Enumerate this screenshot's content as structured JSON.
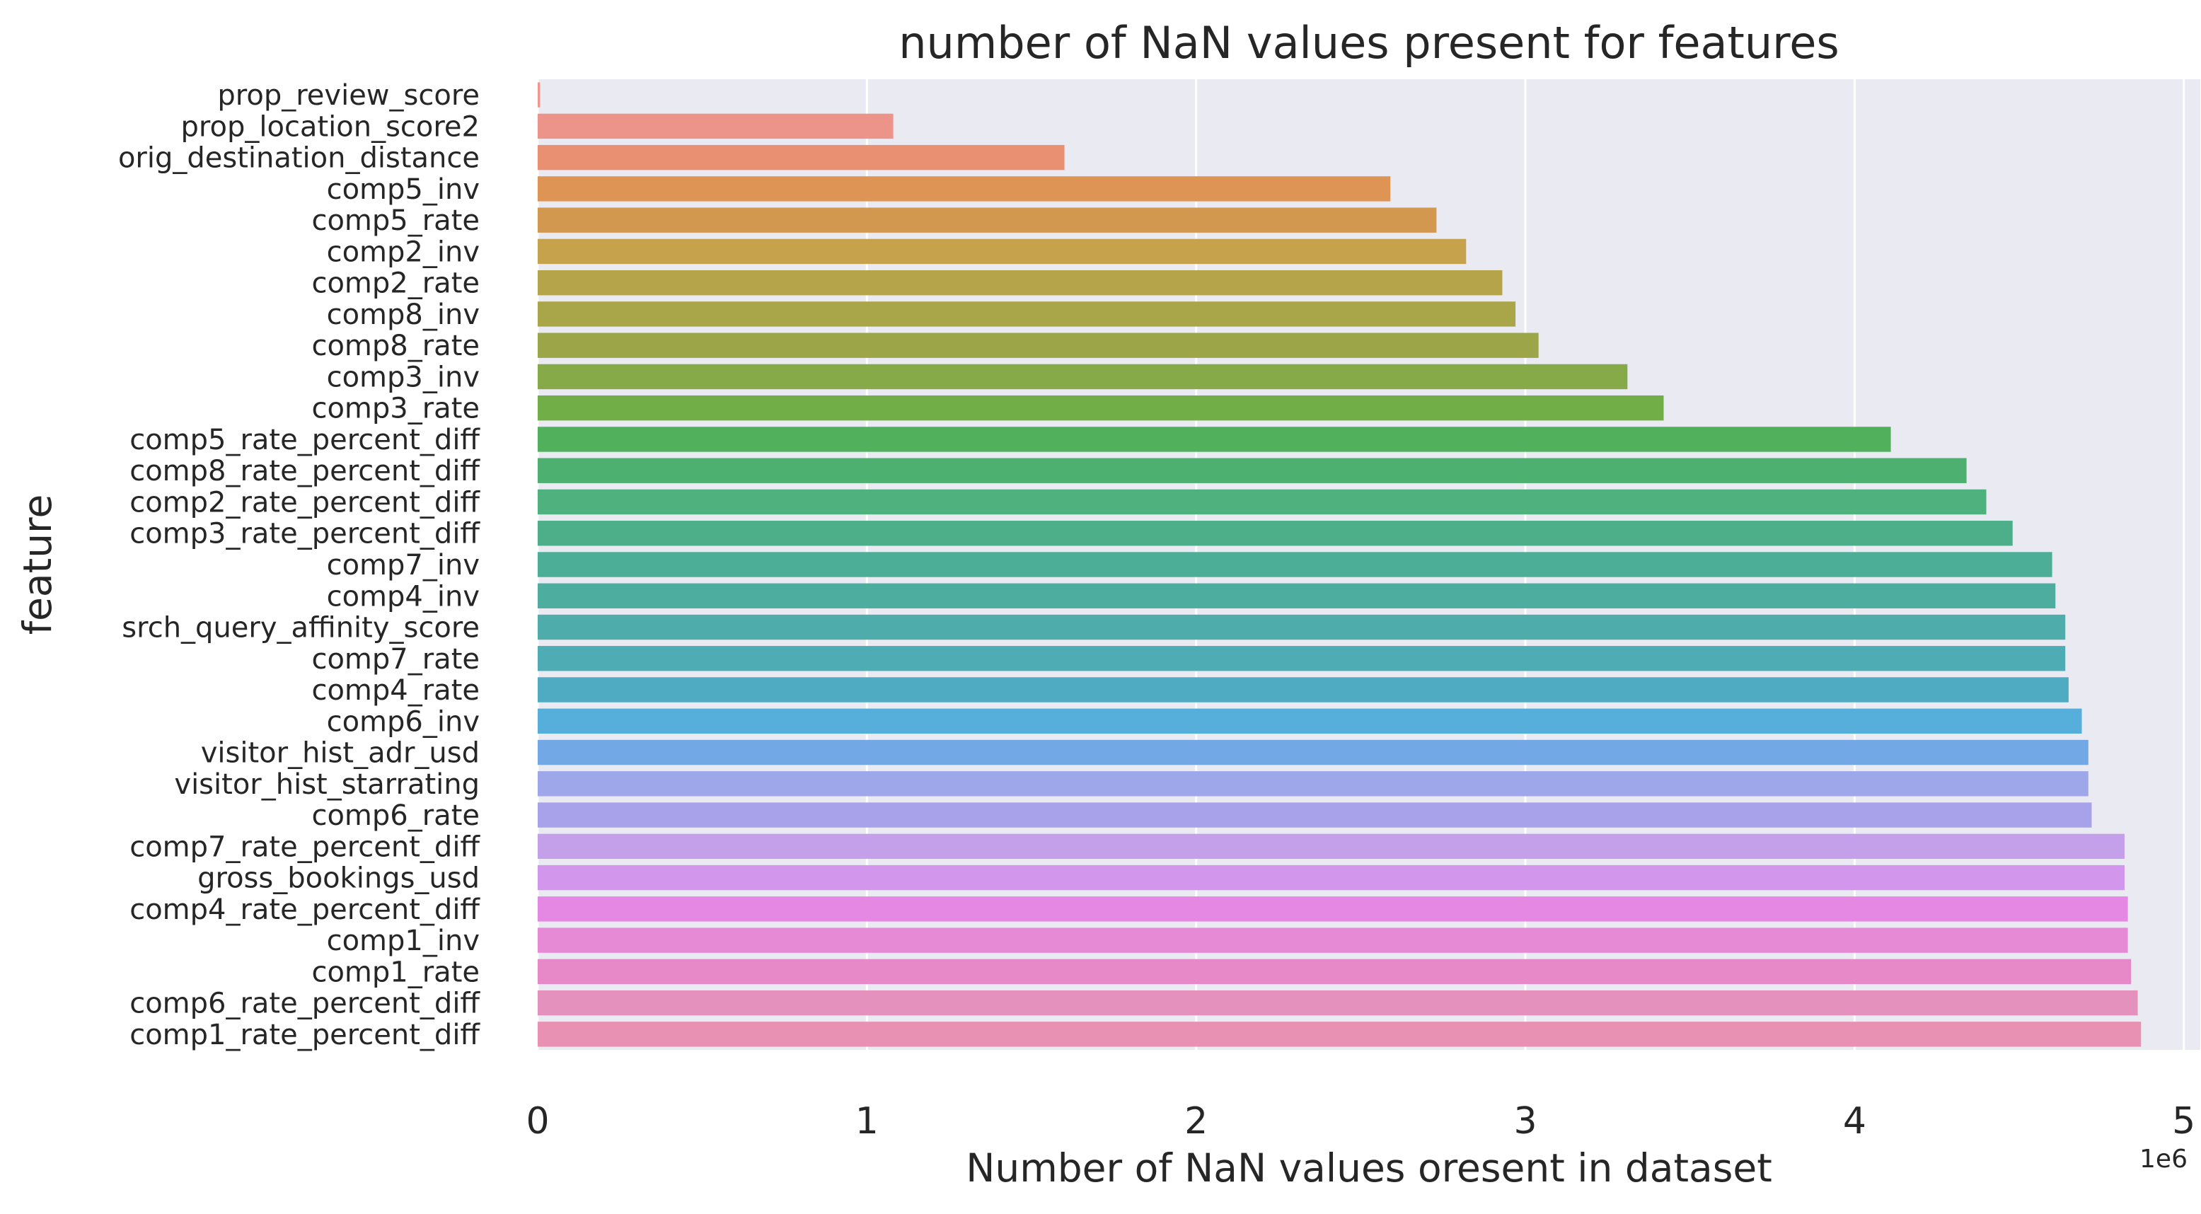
{
  "chart_data": {
    "type": "bar",
    "orientation": "horizontal",
    "title": "number of NaN values present for features",
    "xlabel": "Number of NaN values oresent in dataset",
    "ylabel": "feature",
    "x_offset_label": "1e6",
    "xlim": [
      0,
      5.05
    ],
    "x_ticks": [
      "0",
      "1",
      "2",
      "3",
      "4",
      "5"
    ],
    "grid": true,
    "categories": [
      "prop_review_score",
      "prop_location_score2",
      "orig_destination_distance",
      "comp5_inv",
      "comp5_rate",
      "comp2_inv",
      "comp2_rate",
      "comp8_inv",
      "comp8_rate",
      "comp3_inv",
      "comp3_rate",
      "comp5_rate_percent_diff",
      "comp8_rate_percent_diff",
      "comp2_rate_percent_diff",
      "comp3_rate_percent_diff",
      "comp7_inv",
      "comp4_inv",
      "srch_query_affinity_score",
      "comp7_rate",
      "comp4_rate",
      "comp6_inv",
      "visitor_hist_adr_usd",
      "visitor_hist_starrating",
      "comp6_rate",
      "comp7_rate_percent_diff",
      "gross_bookings_usd",
      "comp4_rate_percent_diff",
      "comp1_inv",
      "comp1_rate",
      "comp6_rate_percent_diff",
      "comp1_rate_percent_diff"
    ],
    "values": [
      0.0072,
      1.08,
      1.6,
      2.59,
      2.73,
      2.82,
      2.93,
      2.97,
      3.04,
      3.31,
      3.42,
      4.11,
      4.34,
      4.4,
      4.48,
      4.6,
      4.61,
      4.64,
      4.64,
      4.65,
      4.69,
      4.71,
      4.71,
      4.72,
      4.82,
      4.82,
      4.83,
      4.83,
      4.84,
      4.86,
      4.87
    ],
    "colors": [
      "#f0968c",
      "#ec9489",
      "#e99072",
      "#dd9454",
      "#d3984f",
      "#c7a24c",
      "#b6a44a",
      "#a9a549",
      "#9ca649",
      "#86aa48",
      "#72ae48",
      "#50b05c",
      "#4eb070",
      "#4eb17e",
      "#4caf89",
      "#4dae97",
      "#4daea0",
      "#4eadaa",
      "#4eacb5",
      "#4eabc1",
      "#56aedb",
      "#72a8e6",
      "#9ea7ea",
      "#a7a2ea",
      "#c4a0eb",
      "#d297ec",
      "#e488e4",
      "#e78ad6",
      "#e789c9",
      "#e591bd",
      "#e891b2"
    ]
  }
}
